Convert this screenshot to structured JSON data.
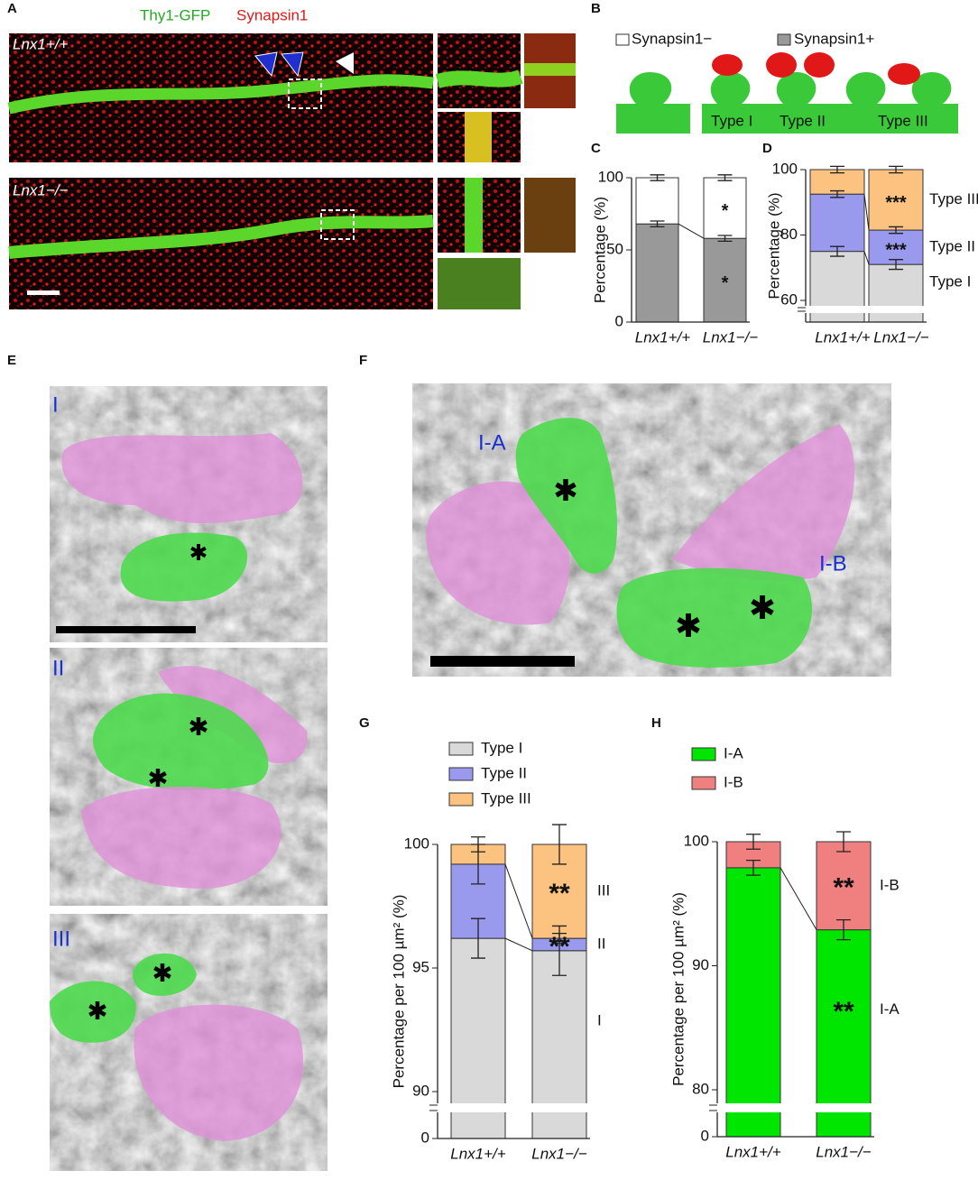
{
  "panel_labels": [
    "A",
    "B",
    "C",
    "D",
    "E",
    "F",
    "G",
    "H"
  ],
  "panel_a": {
    "legend": [
      "Thy1-GFP",
      "Synapsin1"
    ],
    "genotype_labels": [
      "Lnx1+/+",
      "Lnx1−/−"
    ]
  },
  "panel_b": {
    "types": [
      "Type I",
      "Type II",
      "Type III"
    ]
  },
  "panel_e": {
    "labels": [
      "I",
      "II",
      "III"
    ]
  },
  "panel_f": {
    "labels": [
      "I-A",
      "I-B"
    ]
  },
  "chart_data": [
    {
      "type": "stacked-bar",
      "ylabel": "Percentage (%)",
      "categories": [
        "Lnx1+/+",
        "Lnx1−/−"
      ],
      "ylim": [
        0,
        100
      ],
      "yticks": [
        0,
        50,
        100
      ],
      "series": [
        {
          "name": "Synapsin1+",
          "color": "#999999",
          "values": [
            68,
            58
          ],
          "errors": [
            2,
            2
          ],
          "significance": [
            null,
            "*"
          ]
        },
        {
          "name": "Synapsin1−",
          "color": "#ffffff",
          "values": [
            32,
            42
          ],
          "errors": [
            2,
            2
          ],
          "significance": [
            null,
            "*"
          ]
        }
      ]
    },
    {
      "type": "stacked-bar",
      "ylabel": "Percentage (%)",
      "categories": [
        "Lnx1+/+",
        "Lnx1−/−"
      ],
      "ylim": [
        60,
        100
      ],
      "yticks": [
        60,
        80,
        100
      ],
      "axis_break": true,
      "legend": "right",
      "series": [
        {
          "name": "Type I",
          "color": "#d9d9d9",
          "values": [
            75,
            71
          ],
          "errors": [
            1.5,
            1.5
          ],
          "significance": [
            null,
            null
          ]
        },
        {
          "name": "Type II",
          "color": "#9999ee",
          "values": [
            17.5,
            10.5
          ],
          "errors": [
            1,
            1
          ],
          "significance": [
            null,
            "***"
          ]
        },
        {
          "name": "Type III",
          "color": "#fcc27f",
          "values": [
            7.5,
            18.5
          ],
          "errors": [
            1,
            1
          ],
          "significance": [
            null,
            "***"
          ]
        }
      ]
    },
    {
      "type": "stacked-bar",
      "ylabel": "Percentage per 100 µm² (%)",
      "categories": [
        "Lnx1+/+",
        "Lnx1−/−"
      ],
      "ylim": [
        90,
        100
      ],
      "yticks": [
        0,
        90,
        95,
        100
      ],
      "axis_break": true,
      "legend": "top",
      "segment_labels": [
        "I",
        "II",
        "III"
      ],
      "series": [
        {
          "name": "Type I",
          "color": "#d9d9d9",
          "values": [
            96.2,
            95.7
          ],
          "errors": [
            0.8,
            1.0
          ],
          "significance": [
            null,
            null
          ]
        },
        {
          "name": "Type II",
          "color": "#9999ee",
          "values": [
            3.0,
            0.5
          ],
          "errors": [
            0.8,
            0.2
          ],
          "significance": [
            null,
            "**"
          ]
        },
        {
          "name": "Type III",
          "color": "#fcc27f",
          "values": [
            0.8,
            3.8
          ],
          "errors": [
            0.3,
            0.8
          ],
          "significance": [
            null,
            "**"
          ]
        }
      ]
    },
    {
      "type": "stacked-bar",
      "ylabel": "Percentage per 100 µm² (%)",
      "categories": [
        "Lnx1+/+",
        "Lnx1−/−"
      ],
      "ylim": [
        80,
        100
      ],
      "yticks": [
        0,
        80,
        90,
        100
      ],
      "axis_break": true,
      "legend": "top",
      "segment_labels": [
        "I-A",
        "I-B"
      ],
      "series": [
        {
          "name": "I-A",
          "color": "#00e600",
          "values": [
            97.9,
            92.9
          ],
          "errors": [
            0.6,
            0.8
          ],
          "significance": [
            null,
            "**"
          ]
        },
        {
          "name": "I-B",
          "color": "#f08080",
          "values": [
            2.1,
            7.1
          ],
          "errors": [
            0.6,
            0.8
          ],
          "significance": [
            null,
            "**"
          ]
        }
      ]
    }
  ]
}
